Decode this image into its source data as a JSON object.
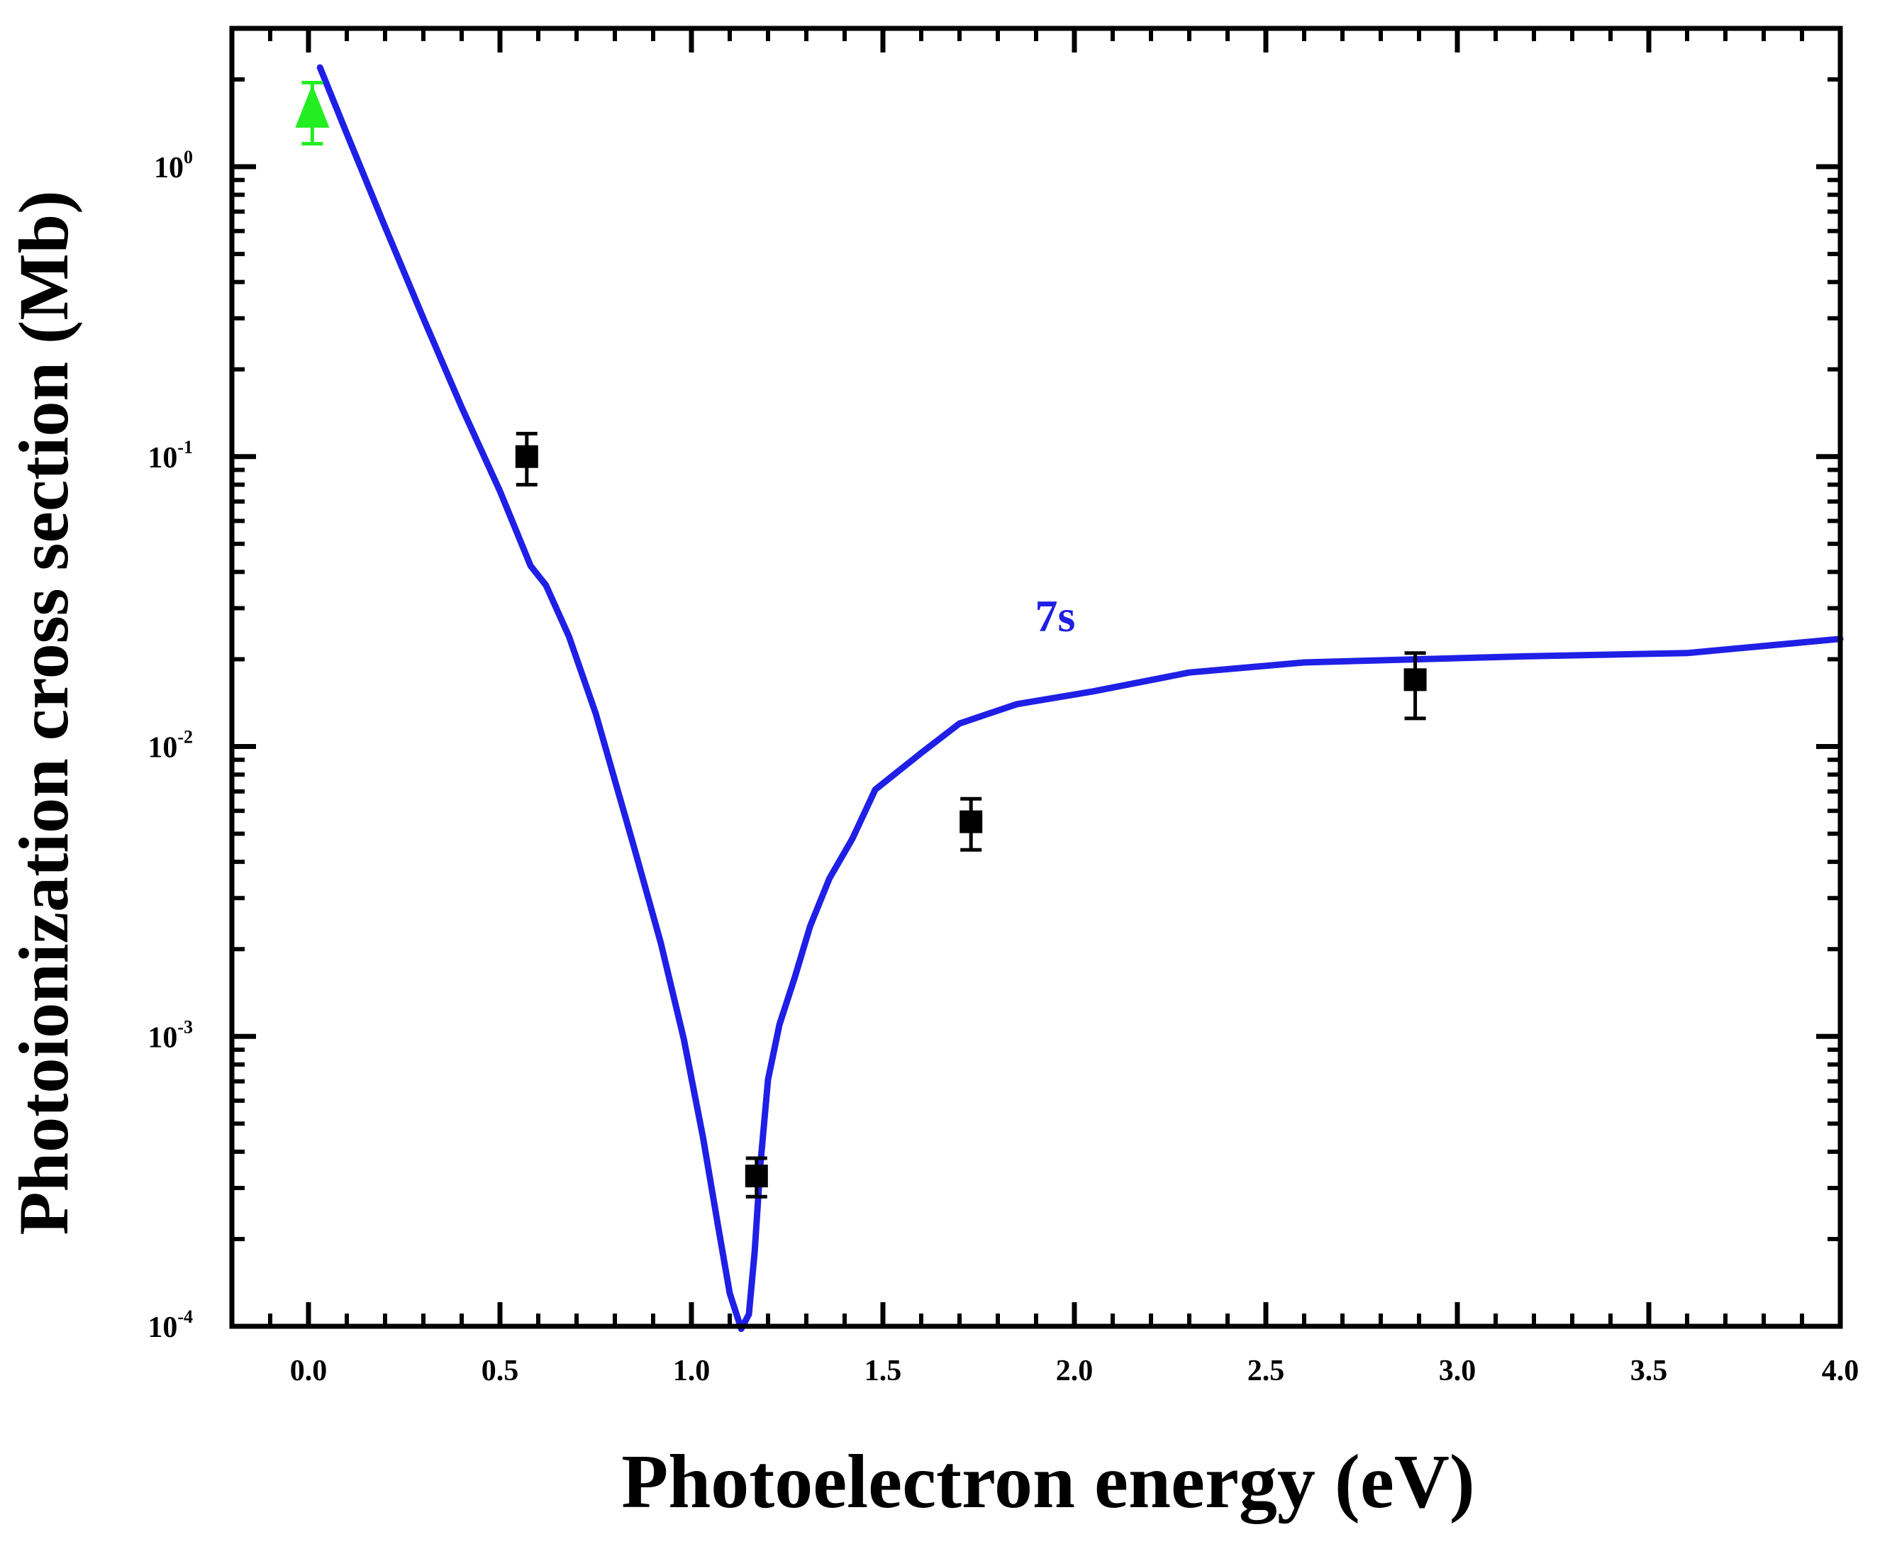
{
  "chart_data": {
    "type": "line",
    "title": "",
    "xlabel": "Photoelectron energy (eV)",
    "ylabel": "Photoionization cross section (Mb)",
    "xlim": [
      -0.2,
      4.0
    ],
    "ylim": [
      0.0001,
      3
    ],
    "yscale": "log",
    "x_ticks": [
      0.0,
      0.5,
      1.0,
      1.5,
      2.0,
      2.5,
      3.0,
      3.5,
      4.0
    ],
    "x_tick_labels": [
      "0.0",
      "0.5",
      "1.0",
      "1.5",
      "2.0",
      "2.5",
      "3.0",
      "3.5",
      "4.0"
    ],
    "y_ticks": [
      {
        "value": 1,
        "base": "10",
        "exp": "0"
      },
      {
        "value": 0.1,
        "base": "10",
        "exp": "-1"
      },
      {
        "value": 0.01,
        "base": "10",
        "exp": "-2"
      },
      {
        "value": 0.001,
        "base": "10",
        "exp": "-3"
      },
      {
        "value": 0.0001,
        "base": "10",
        "exp": "-4"
      }
    ],
    "grid": false,
    "colors": {
      "curve": "#1f1fe6",
      "triangle": "#22ee22",
      "squares": "#000000",
      "axes": "#000000"
    },
    "series": [
      {
        "name": "7s",
        "kind": "theory-curve",
        "label": "7s",
        "label_at": {
          "x": 1.95,
          "y": 0.025
        },
        "x": [
          0.03,
          0.1,
          0.2,
          0.3,
          0.4,
          0.5,
          0.58,
          0.62,
          0.68,
          0.75,
          0.85,
          0.92,
          0.98,
          1.03,
          1.07,
          1.1,
          1.13,
          1.15,
          1.165,
          1.18,
          1.2,
          1.23,
          1.27,
          1.31,
          1.36,
          1.42,
          1.48,
          1.6,
          1.7,
          1.85,
          2.05,
          2.3,
          2.6,
          2.9,
          3.2,
          3.6,
          4.0
        ],
        "y": [
          2.2,
          1.3,
          0.62,
          0.3,
          0.148,
          0.076,
          0.042,
          0.036,
          0.024,
          0.013,
          0.0045,
          0.0021,
          0.00098,
          0.00045,
          0.00022,
          0.00013,
          9.8e-05,
          0.00011,
          0.00018,
          0.00036,
          0.00071,
          0.0011,
          0.0016,
          0.0024,
          0.0035,
          0.0048,
          0.0071,
          0.0095,
          0.012,
          0.014,
          0.0155,
          0.018,
          0.0195,
          0.02,
          0.0205,
          0.021,
          0.0235
        ]
      },
      {
        "name": "squares",
        "kind": "experiment",
        "marker": "square",
        "x": [
          0.57,
          1.17,
          1.73,
          2.89
        ],
        "y": [
          0.1,
          0.00033,
          0.0055,
          0.017
        ],
        "y_err_low": [
          0.08,
          0.00028,
          0.0044,
          0.0125
        ],
        "y_err_high": [
          0.12,
          0.00038,
          0.0066,
          0.021
        ]
      },
      {
        "name": "triangle",
        "kind": "experiment",
        "marker": "triangle",
        "x": [
          0.01
        ],
        "y": [
          1.55
        ],
        "y_err_low": [
          1.2
        ],
        "y_err_high": [
          1.95
        ]
      }
    ]
  }
}
